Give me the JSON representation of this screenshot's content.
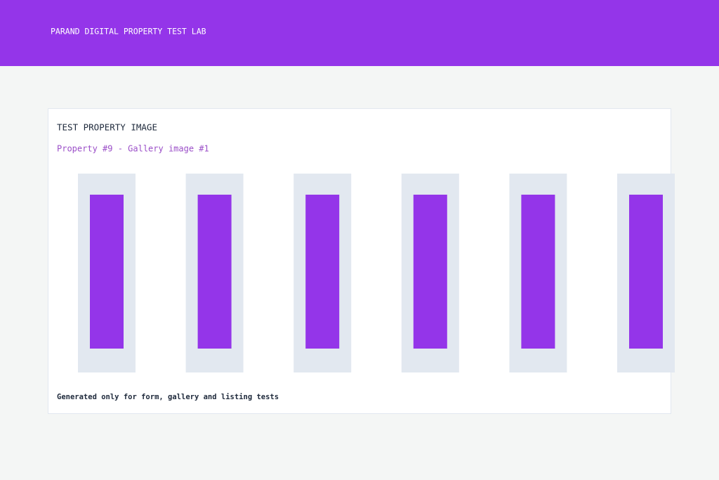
{
  "header": {
    "title": "PARAND DIGITAL PROPERTY TEST LAB"
  },
  "card": {
    "title": "TEST PROPERTY IMAGE",
    "subtitle": "Property #9 - Gallery image #1",
    "footer": "Generated only for form, gallery and listing tests"
  }
}
